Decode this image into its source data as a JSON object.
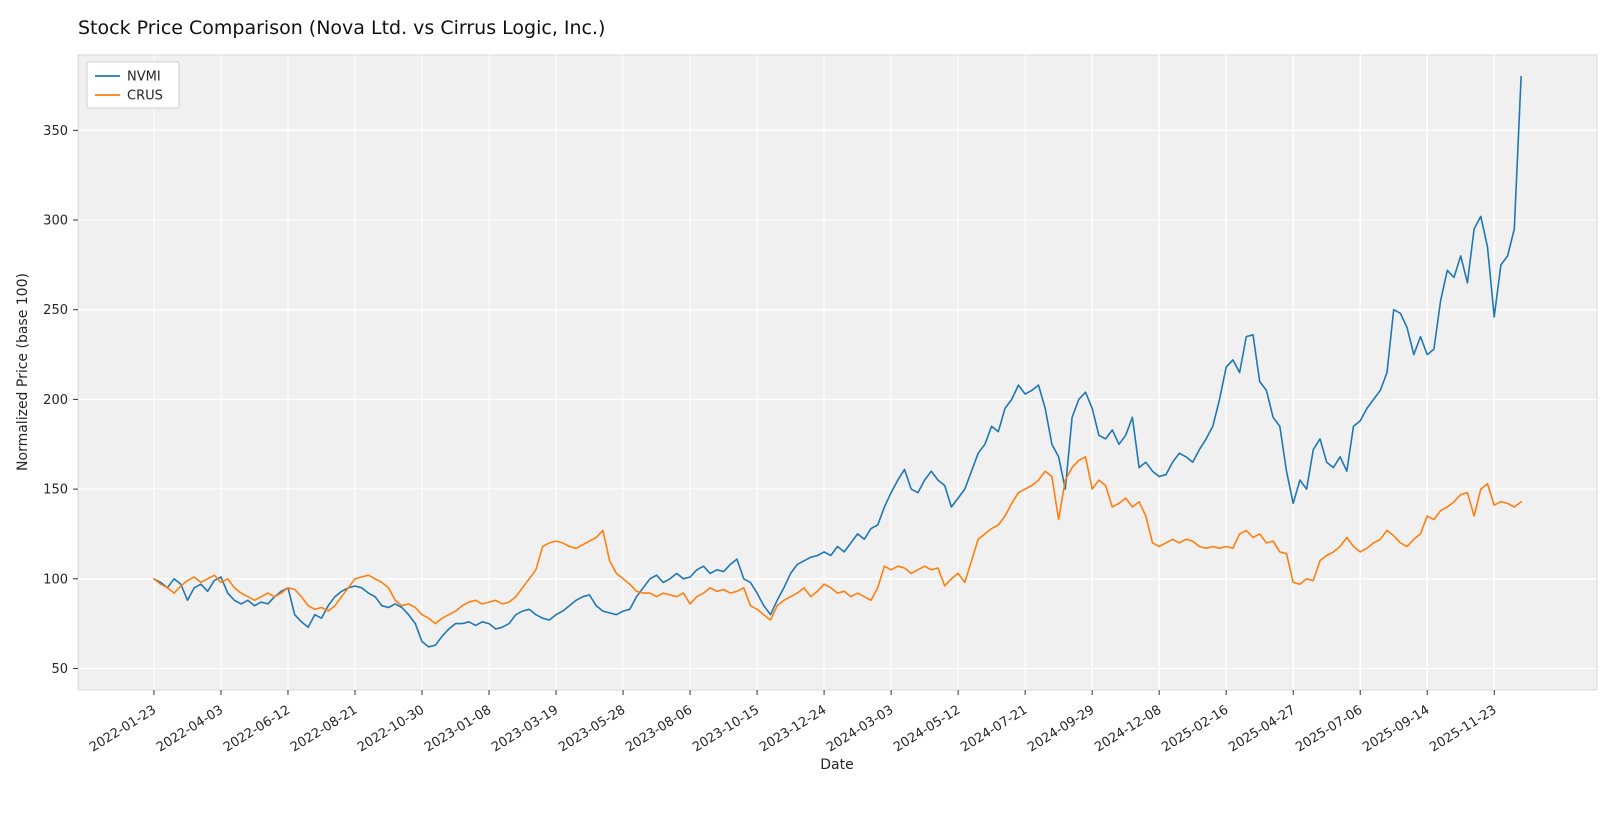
{
  "chart_data": {
    "type": "line",
    "title": "Stock Price Comparison (Nova Ltd. vs Cirrus Logic, Inc.)",
    "xlabel": "Date",
    "ylabel": "Normalized Price (base 100)",
    "x_unit": "weekly",
    "x_start": "2022-01-23",
    "grid": true,
    "legend_position": "upper-left",
    "plot_bg_color": "#f0f0f0",
    "grid_color": "#ffffff",
    "ylim": [
      38,
      392
    ],
    "y_ticks": [
      50,
      100,
      150,
      200,
      250,
      300,
      350
    ],
    "x_tick_indices": [
      0,
      10,
      20,
      30,
      40,
      50,
      60,
      70,
      80,
      90,
      100,
      110,
      120,
      130,
      140,
      150,
      160,
      170,
      180,
      190,
      200
    ],
    "x_tick_labels": [
      "2022-01-23",
      "2022-04-03",
      "2022-06-12",
      "2022-08-21",
      "2022-10-30",
      "2023-01-08",
      "2023-03-19",
      "2023-05-28",
      "2023-08-06",
      "2023-10-15",
      "2023-12-24",
      "2024-03-03",
      "2024-05-12",
      "2024-07-21",
      "2024-09-29",
      "2024-12-08",
      "2025-02-16",
      "2025-04-27",
      "2025-07-06",
      "2025-09-14",
      "2025-11-23"
    ],
    "series": [
      {
        "name": "NVMI",
        "color": "#1f77b4",
        "values": [
          100,
          98,
          95,
          100,
          97,
          88,
          95,
          97,
          93,
          99,
          101,
          92,
          88,
          86,
          88,
          85,
          87,
          86,
          90,
          93,
          95,
          80,
          76,
          73,
          80,
          78,
          85,
          90,
          93,
          95,
          96,
          95,
          92,
          90,
          85,
          84,
          86,
          84,
          80,
          75,
          65,
          62,
          63,
          68,
          72,
          75,
          75,
          76,
          74,
          76,
          75,
          72,
          73,
          75,
          80,
          82,
          83,
          80,
          78,
          77,
          80,
          82,
          85,
          88,
          90,
          91,
          85,
          82,
          81,
          80,
          82,
          83,
          90,
          95,
          100,
          102,
          98,
          100,
          103,
          100,
          101,
          105,
          107,
          103,
          105,
          104,
          108,
          111,
          100,
          98,
          92,
          85,
          80,
          88,
          95,
          103,
          108,
          110,
          112,
          113,
          115,
          113,
          118,
          115,
          120,
          125,
          122,
          128,
          130,
          140,
          148,
          155,
          161,
          150,
          148,
          155,
          160,
          155,
          152,
          140,
          145,
          150,
          160,
          170,
          175,
          185,
          182,
          195,
          200,
          208,
          203,
          205,
          208,
          195,
          175,
          168,
          150,
          190,
          200,
          204,
          195,
          180,
          178,
          183,
          175,
          180,
          190,
          162,
          165,
          160,
          157,
          158,
          165,
          170,
          168,
          165,
          172,
          178,
          185,
          200,
          218,
          222,
          215,
          235,
          236,
          210,
          205,
          190,
          185,
          160,
          142,
          155,
          150,
          172,
          178,
          165,
          162,
          168,
          160,
          185,
          188,
          195,
          200,
          205,
          215,
          250,
          248,
          240,
          225,
          235,
          225,
          228,
          255,
          272,
          268,
          280,
          265,
          295,
          302,
          285,
          246,
          275,
          280,
          295,
          380
        ]
      },
      {
        "name": "CRUS",
        "color": "#ff7f0e",
        "values": [
          100,
          97,
          95,
          92,
          96,
          99,
          101,
          98,
          100,
          102,
          98,
          100,
          95,
          92,
          90,
          88,
          90,
          92,
          90,
          92,
          95,
          94,
          90,
          85,
          83,
          84,
          82,
          85,
          90,
          95,
          100,
          101,
          102,
          100,
          98,
          95,
          88,
          85,
          86,
          84,
          80,
          78,
          75,
          78,
          80,
          82,
          85,
          87,
          88,
          86,
          87,
          88,
          86,
          87,
          90,
          95,
          100,
          105,
          118,
          120,
          121,
          120,
          118,
          117,
          119,
          121,
          123,
          127,
          110,
          103,
          100,
          97,
          93,
          92,
          92,
          90,
          92,
          91,
          90,
          92,
          86,
          90,
          92,
          95,
          93,
          94,
          92,
          93,
          95,
          85,
          83,
          80,
          77,
          85,
          88,
          90,
          92,
          95,
          90,
          93,
          97,
          95,
          92,
          93,
          90,
          92,
          90,
          88,
          95,
          107,
          105,
          107,
          106,
          103,
          105,
          107,
          105,
          106,
          96,
          100,
          103,
          98,
          110,
          122,
          125,
          128,
          130,
          135,
          142,
          148,
          150,
          152,
          155,
          160,
          157,
          133,
          155,
          162,
          166,
          168,
          150,
          155,
          152,
          140,
          142,
          145,
          140,
          143,
          135,
          120,
          118,
          120,
          122,
          120,
          122,
          121,
          118,
          117,
          118,
          117,
          118,
          117,
          125,
          127,
          123,
          125,
          120,
          121,
          115,
          114,
          98,
          97,
          100,
          99,
          110,
          113,
          115,
          118,
          123,
          118,
          115,
          117,
          120,
          122,
          127,
          124,
          120,
          118,
          122,
          125,
          135,
          133,
          138,
          140,
          143,
          147,
          148,
          135,
          150,
          153,
          141,
          143,
          142,
          140,
          143
        ]
      }
    ]
  }
}
